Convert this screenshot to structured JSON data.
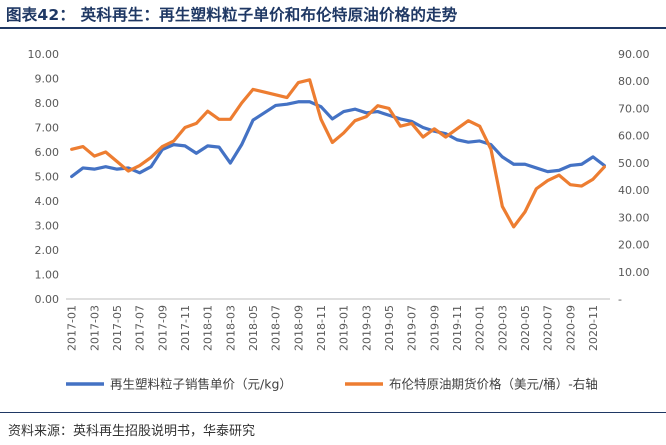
{
  "title": "图表42：  英科再生：再生塑料粒子单价和布伦特原油价格的走势",
  "source": "资料来源：英科再生招股说明书，华泰研究",
  "chart_data": {
    "type": "line",
    "x": [
      "2017-01",
      "2017-02",
      "2017-03",
      "2017-04",
      "2017-05",
      "2017-06",
      "2017-07",
      "2017-08",
      "2017-09",
      "2017-10",
      "2017-11",
      "2017-12",
      "2018-01",
      "2018-02",
      "2018-03",
      "2018-04",
      "2018-05",
      "2018-06",
      "2018-07",
      "2018-08",
      "2018-09",
      "2018-10",
      "2018-11",
      "2018-12",
      "2019-01",
      "2019-02",
      "2019-03",
      "2019-04",
      "2019-05",
      "2019-06",
      "2019-07",
      "2019-08",
      "2019-09",
      "2019-10",
      "2019-11",
      "2019-12",
      "2020-01",
      "2020-02",
      "2020-03",
      "2020-04",
      "2020-05",
      "2020-06",
      "2020-07",
      "2020-08",
      "2020-09",
      "2020-10",
      "2020-11",
      "2020-12"
    ],
    "x_tick_labels": [
      "2017-01",
      "2017-03",
      "2017-05",
      "2017-07",
      "2017-09",
      "2017-11",
      "2018-01",
      "2018-03",
      "2018-05",
      "2018-07",
      "2018-09",
      "2018-11",
      "2019-01",
      "2019-03",
      "2019-05",
      "2019-07",
      "2019-09",
      "2019-11",
      "2020-01",
      "2020-03",
      "2020-05",
      "2020-07",
      "2020-09",
      "2020-11"
    ],
    "y_left": {
      "min": 0,
      "max": 10,
      "ticks": [
        "0.00",
        "1.00",
        "2.00",
        "3.00",
        "4.00",
        "5.00",
        "6.00",
        "7.00",
        "8.00",
        "9.00",
        "10.00"
      ]
    },
    "y_right": {
      "min": 0,
      "max": 90,
      "ticks": [
        "-",
        "10.00",
        "20.00",
        "30.00",
        "40.00",
        "50.00",
        "60.00",
        "70.00",
        "80.00",
        "90.00"
      ]
    },
    "grid": false,
    "legend_position": "bottom",
    "series": [
      {
        "name": "再生塑料粒子销售单价（元/kg）",
        "axis": "left",
        "color": "#4472C4",
        "values": [
          5.0,
          5.35,
          5.3,
          5.4,
          5.3,
          5.35,
          5.15,
          5.4,
          6.1,
          6.3,
          6.25,
          5.95,
          6.25,
          6.2,
          5.55,
          6.3,
          7.3,
          7.6,
          7.9,
          7.95,
          8.05,
          8.05,
          7.85,
          7.35,
          7.65,
          7.75,
          7.6,
          7.65,
          7.5,
          7.35,
          7.25,
          7.0,
          6.85,
          6.75,
          6.5,
          6.4,
          6.45,
          6.3,
          5.8,
          5.5,
          5.5,
          5.35,
          5.2,
          5.25,
          5.45,
          5.5,
          5.8,
          5.45
        ]
      },
      {
        "name": "布伦特原油期货价格（美元/桶）-右轴",
        "axis": "right",
        "color": "#ED7D31",
        "values": [
          55.0,
          56.0,
          52.5,
          54.0,
          50.5,
          47.0,
          49.0,
          52.0,
          56.0,
          58.0,
          63.0,
          64.5,
          69.0,
          66.0,
          66.0,
          72.0,
          77.0,
          76.0,
          75.0,
          74.0,
          79.5,
          80.5,
          66.0,
          57.5,
          61.0,
          65.5,
          67.0,
          71.0,
          70.0,
          63.5,
          64.5,
          59.5,
          62.5,
          59.5,
          62.5,
          65.5,
          63.5,
          55.0,
          34.0,
          26.5,
          32.0,
          40.5,
          43.5,
          45.5,
          42.0,
          41.5,
          44.0,
          48.5
        ]
      }
    ]
  }
}
